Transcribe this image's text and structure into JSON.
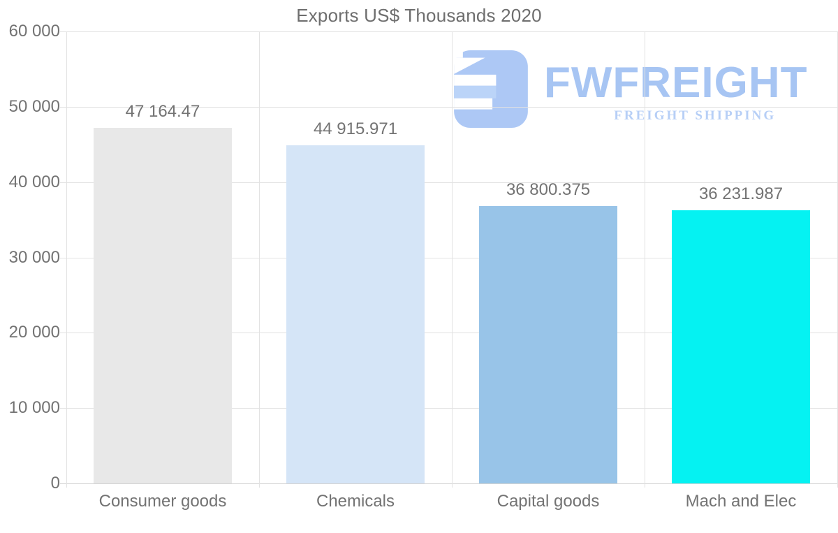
{
  "chart_data": {
    "type": "bar",
    "title": "Exports US$ Thousands 2020",
    "categories": [
      "Consumer goods",
      "Chemicals",
      "Capital goods",
      "Mach and Elec"
    ],
    "values": [
      47164.47,
      44915.971,
      36800.375,
      36231.987
    ],
    "value_labels": [
      "47 164.47",
      "44 915.971",
      "36 800.375",
      "36 231.987"
    ],
    "bar_colors": [
      "#e8e8e8",
      "#d5e5f7",
      "#98c4e8",
      "#05f2f2"
    ],
    "xlabel": "",
    "ylabel": "",
    "ylim": [
      0,
      60000
    ],
    "yticks": [
      0,
      10000,
      20000,
      30000,
      40000,
      50000,
      60000
    ],
    "ytick_labels": [
      "0",
      "10 000",
      "20 000",
      "30 000",
      "40 000",
      "50 000",
      "60 000"
    ],
    "grid": true,
    "legend": null
  },
  "watermark": {
    "brand": "FWFREIGHT",
    "tagline": "FREIGHT SHIPPING",
    "brand_color": "#a3c2f3",
    "tagline_color": "#b4cdf6",
    "icon_color": "#a9c6f5"
  },
  "colors": {
    "background": "#ffffff",
    "grid": "#e2e2e2",
    "axis_text": "#737373",
    "title_text": "#6e6e6e"
  }
}
